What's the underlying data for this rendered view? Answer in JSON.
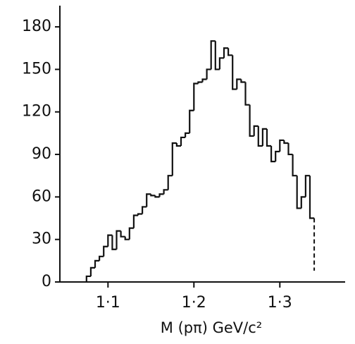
{
  "chart_data": {
    "type": "histogram",
    "x_label": "M (pπ)  GeV/c²",
    "bins": [
      1.075,
      1.08,
      1.085,
      1.09,
      1.095,
      1.1,
      1.105,
      1.11,
      1.115,
      1.12,
      1.125,
      1.13,
      1.135,
      1.14,
      1.145,
      1.15,
      1.155,
      1.16,
      1.165,
      1.17,
      1.175,
      1.18,
      1.185,
      1.19,
      1.195,
      1.2,
      1.205,
      1.21,
      1.215,
      1.22,
      1.225,
      1.23,
      1.235,
      1.24,
      1.245,
      1.25,
      1.255,
      1.26,
      1.265,
      1.27,
      1.275,
      1.28,
      1.285,
      1.29,
      1.295,
      1.3,
      1.305,
      1.31,
      1.315,
      1.32,
      1.325,
      1.33,
      1.335,
      1.34
    ],
    "values": [
      4,
      10,
      15,
      18,
      25,
      33,
      23,
      36,
      32,
      30,
      38,
      47,
      48,
      53,
      62,
      61,
      60,
      62,
      65,
      75,
      98,
      96,
      102,
      105,
      121,
      140,
      141,
      143,
      150,
      170,
      150,
      158,
      165,
      160,
      136,
      143,
      141,
      125,
      103,
      110,
      96,
      108,
      96,
      85,
      92,
      100,
      98,
      90,
      75,
      52,
      60,
      75,
      45
    ],
    "color": "#111111",
    "xlim": [
      1.044,
      1.376
    ],
    "xticks": [
      {
        "value": 1.1,
        "label": "1·1"
      },
      {
        "value": 1.2,
        "label": "1·2"
      },
      {
        "value": 1.3,
        "label": "1·3"
      }
    ],
    "ylim": [
      0,
      190
    ],
    "yticks": [
      0,
      30,
      60,
      90,
      120,
      150,
      180
    ]
  }
}
